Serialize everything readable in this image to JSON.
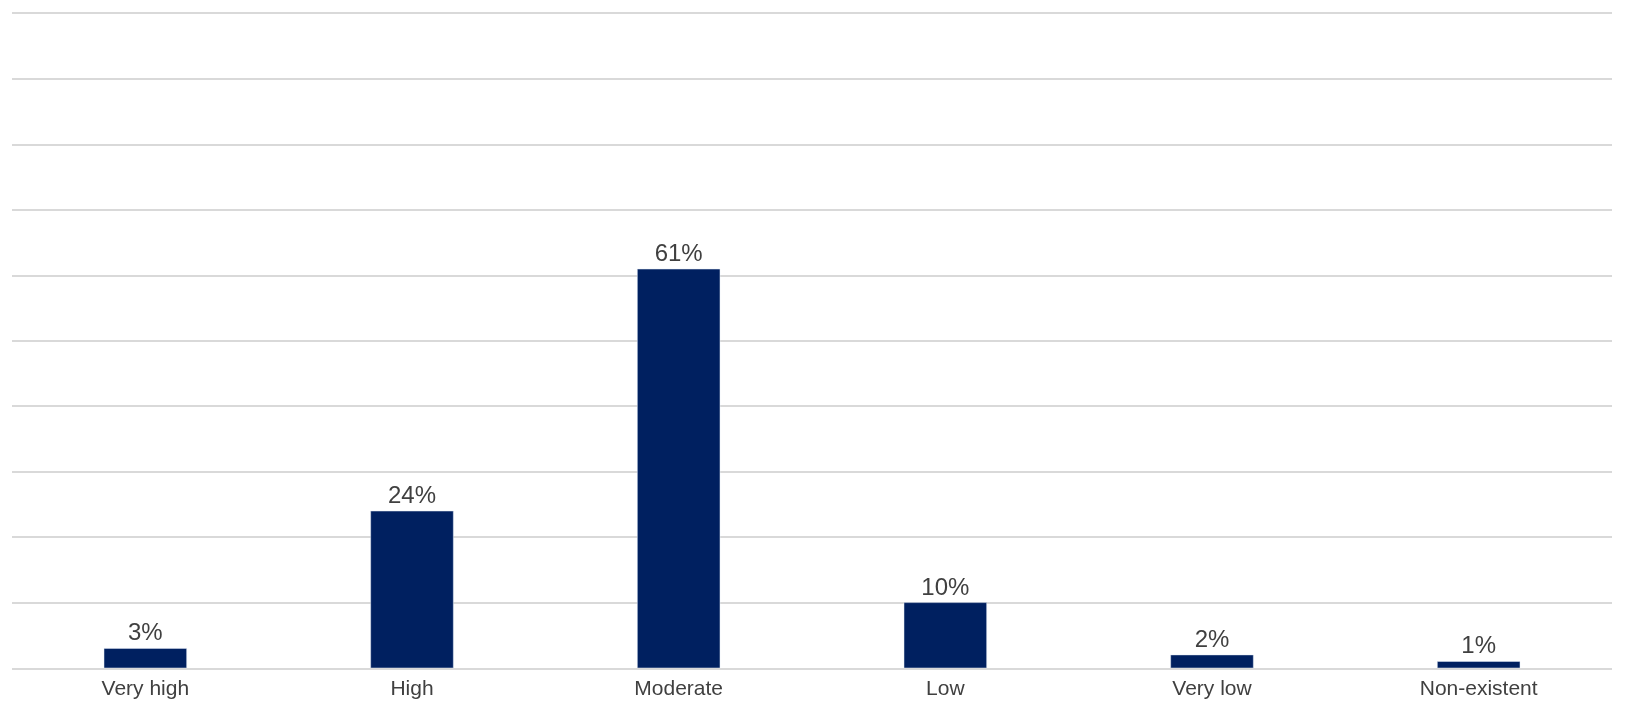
{
  "chart_data": {
    "type": "bar",
    "categories": [
      "Very high",
      "High",
      "Moderate",
      "Low",
      "Very low",
      "Non-existent"
    ],
    "values": [
      3,
      24,
      61,
      10,
      2,
      1
    ],
    "value_labels": [
      "3%",
      "24%",
      "61%",
      "10%",
      "2%",
      "1%"
    ],
    "color": "#002060",
    "ylim": [
      0,
      100
    ],
    "yticks": [
      {
        "value": 0,
        "label": null
      },
      {
        "value": 10,
        "label": null
      },
      {
        "value": 20,
        "label": null
      },
      {
        "value": 30,
        "label": null
      },
      {
        "value": 40,
        "label": null
      },
      {
        "value": 50,
        "label": null
      },
      {
        "value": 60,
        "label": null
      },
      {
        "value": 70,
        "label": null
      },
      {
        "value": 80,
        "label": null
      },
      {
        "value": 90,
        "label": null
      },
      {
        "value": 100,
        "label": null
      }
    ],
    "grid": "y",
    "tick_labels": "x"
  }
}
